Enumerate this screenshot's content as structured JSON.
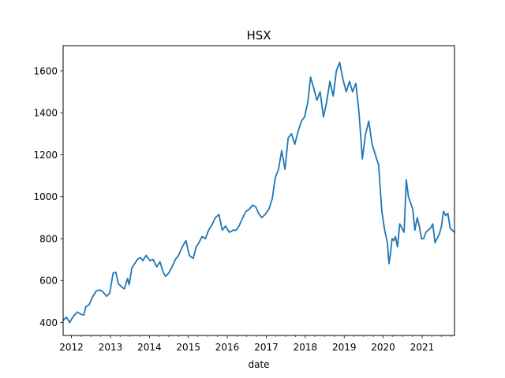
{
  "chart_data": {
    "type": "line",
    "title": "HSX",
    "xlabel": "date",
    "ylabel": "",
    "x_ticks": [
      "2012",
      "2013",
      "2014",
      "2015",
      "2016",
      "2017",
      "2018",
      "2019",
      "2020",
      "2021"
    ],
    "y_ticks": [
      400,
      600,
      800,
      1000,
      1200,
      1400,
      1600
    ],
    "xlim": [
      "2011-10-15",
      "2021-10-31"
    ],
    "ylim": [
      338,
      1720
    ],
    "grid": false,
    "legend": "none",
    "series": [
      {
        "color": "#1f77b4",
        "x": [
          "2011-10-15",
          "2011-11-15",
          "2011-12-15",
          "2012-01-20",
          "2012-02-25",
          "2012-03-25",
          "2012-04-25",
          "2012-05-15",
          "2012-06-15",
          "2012-07-15",
          "2012-08-20",
          "2012-09-25",
          "2012-10-25",
          "2012-11-25",
          "2012-12-25",
          "2013-01-25",
          "2013-02-20",
          "2013-03-15",
          "2013-04-15",
          "2013-05-10",
          "2013-06-10",
          "2013-06-25",
          "2013-07-20",
          "2013-08-15",
          "2013-09-10",
          "2013-10-05",
          "2013-11-01",
          "2013-12-01",
          "2014-01-05",
          "2014-02-05",
          "2014-03-10",
          "2014-04-10",
          "2014-05-10",
          "2014-06-01",
          "2014-07-01",
          "2014-08-01",
          "2014-09-01",
          "2014-10-01",
          "2014-11-05",
          "2014-12-10",
          "2015-01-10",
          "2015-02-15",
          "2015-03-15",
          "2015-04-10",
          "2015-05-10",
          "2015-06-10",
          "2015-07-10",
          "2015-08-15",
          "2015-09-10",
          "2015-10-15",
          "2015-11-15",
          "2015-12-15",
          "2016-01-20",
          "2016-02-25",
          "2016-03-25",
          "2016-04-20",
          "2016-05-25",
          "2016-06-25",
          "2016-07-25",
          "2016-08-25",
          "2016-09-25",
          "2016-10-20",
          "2016-11-20",
          "2016-12-20",
          "2017-01-25",
          "2017-02-25",
          "2017-03-25",
          "2017-04-25",
          "2017-05-25",
          "2017-06-25",
          "2017-07-25",
          "2017-08-25",
          "2017-09-25",
          "2017-10-25",
          "2017-11-25",
          "2017-12-25",
          "2018-01-25",
          "2018-02-20",
          "2018-03-20",
          "2018-04-20",
          "2018-05-20",
          "2018-06-20",
          "2018-07-20",
          "2018-08-20",
          "2018-09-20",
          "2018-10-20",
          "2018-11-20",
          "2018-12-20",
          "2019-01-20",
          "2019-02-20",
          "2019-03-20",
          "2019-04-20",
          "2019-05-20",
          "2019-06-20",
          "2019-07-20",
          "2019-08-20",
          "2019-09-20",
          "2019-10-20",
          "2019-11-20",
          "2019-12-20",
          "2020-01-15",
          "2020-02-10",
          "2020-02-25",
          "2020-03-10",
          "2020-03-25",
          "2020-04-10",
          "2020-04-25",
          "2020-05-15",
          "2020-06-05",
          "2020-06-25",
          "2020-07-15",
          "2020-08-05",
          "2020-08-25",
          "2020-09-15",
          "2020-10-05",
          "2020-10-25",
          "2020-11-15",
          "2020-12-05",
          "2020-12-25",
          "2021-01-15",
          "2021-02-05",
          "2021-02-25",
          "2021-03-20",
          "2021-04-10",
          "2021-05-01",
          "2021-05-20",
          "2021-06-10",
          "2021-07-01",
          "2021-07-20",
          "2021-08-10",
          "2021-08-30",
          "2021-09-20",
          "2021-10-10",
          "2021-10-31"
        ],
        "y": [
          410,
          425,
          400,
          430,
          450,
          440,
          435,
          475,
          485,
          520,
          550,
          555,
          545,
          525,
          540,
          635,
          640,
          585,
          570,
          560,
          610,
          580,
          660,
          680,
          700,
          710,
          695,
          720,
          695,
          700,
          665,
          690,
          640,
          620,
          635,
          665,
          700,
          720,
          760,
          790,
          720,
          705,
          760,
          780,
          810,
          800,
          840,
          870,
          900,
          915,
          840,
          860,
          830,
          840,
          840,
          860,
          900,
          930,
          940,
          960,
          950,
          920,
          900,
          915,
          940,
          990,
          1090,
          1130,
          1220,
          1130,
          1280,
          1300,
          1250,
          1310,
          1360,
          1380,
          1450,
          1570,
          1520,
          1460,
          1500,
          1380,
          1450,
          1550,
          1480,
          1600,
          1640,
          1560,
          1500,
          1550,
          1500,
          1540,
          1400,
          1180,
          1300,
          1360,
          1250,
          1200,
          1150,
          930,
          840,
          780,
          680,
          730,
          800,
          790,
          810,
          760,
          870,
          850,
          830,
          1080,
          1000,
          970,
          940,
          840,
          900,
          860,
          800,
          800,
          830,
          840,
          850,
          870,
          780,
          800,
          820,
          860,
          930,
          910,
          920,
          850,
          840,
          830
        ]
      }
    ]
  }
}
